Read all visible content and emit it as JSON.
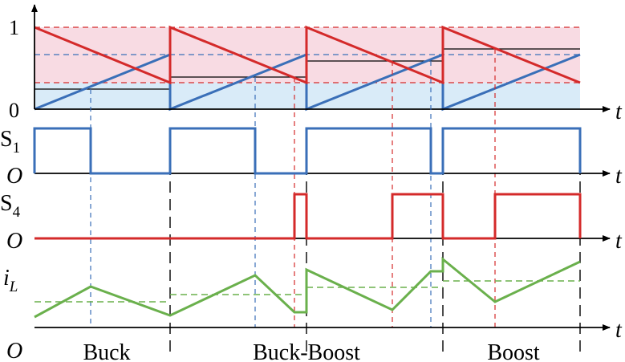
{
  "labels": {
    "y_one": "1",
    "y_zero": "0",
    "s1": "S",
    "s1_sub": "1",
    "s4": "S",
    "s4_sub": "4",
    "il": "i",
    "il_sub": "L",
    "origin": "O",
    "t": "t"
  },
  "modes": [
    "Buck",
    "Buck-Boost",
    "Boost"
  ],
  "colors": {
    "red": "#d42a2a",
    "blue": "#3a6fb8",
    "green": "#6ab04c",
    "pink_fill": "#f8dbe3",
    "blue_fill": "#d9ebf8",
    "black": "#000000"
  }
}
